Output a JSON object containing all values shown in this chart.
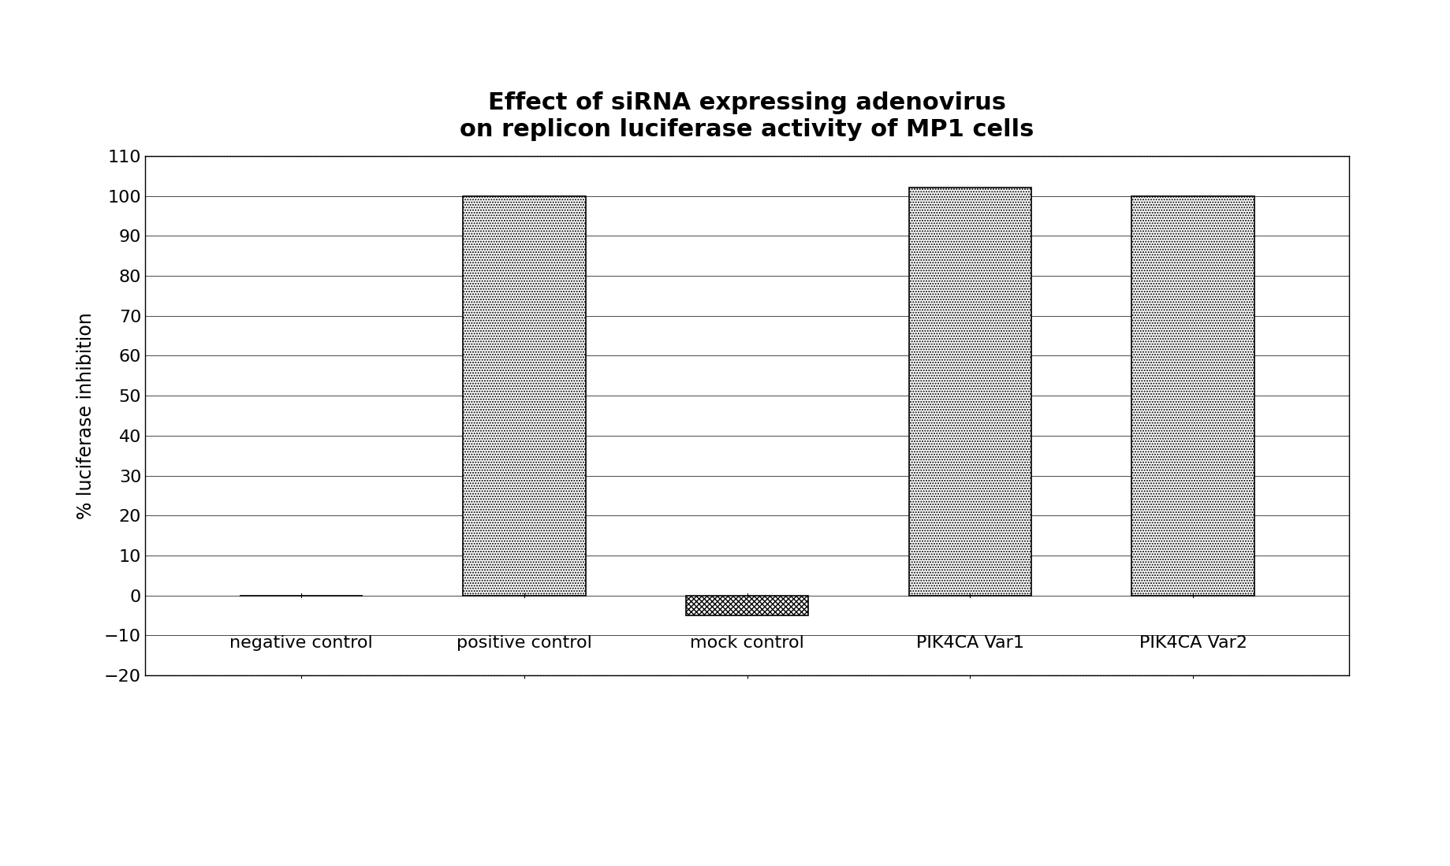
{
  "title_line1": "Effect of siRNA expressing adenovirus",
  "title_line2": "on replicon luciferase activity of MP1 cells",
  "categories": [
    "negative control",
    "positive control",
    "mock control",
    "PIK4CA Var1",
    "PIK4CA Var2"
  ],
  "values": [
    0,
    100,
    -5,
    102,
    100
  ],
  "ylim": [
    -20,
    110
  ],
  "yticks": [
    -20,
    -10,
    0,
    10,
    20,
    30,
    40,
    50,
    60,
    70,
    80,
    90,
    100,
    110
  ],
  "ylabel": "% luciferase inhibition",
  "bar_width": 0.55,
  "hatch_main": ".....",
  "hatch_mock": "xxxxx",
  "bar_color": "#ffffff",
  "bar_edge_color": "#000000",
  "background_color": "#ffffff",
  "title_fontsize": 22,
  "axis_fontsize": 17,
  "tick_fontsize": 16,
  "label_fontsize": 16
}
